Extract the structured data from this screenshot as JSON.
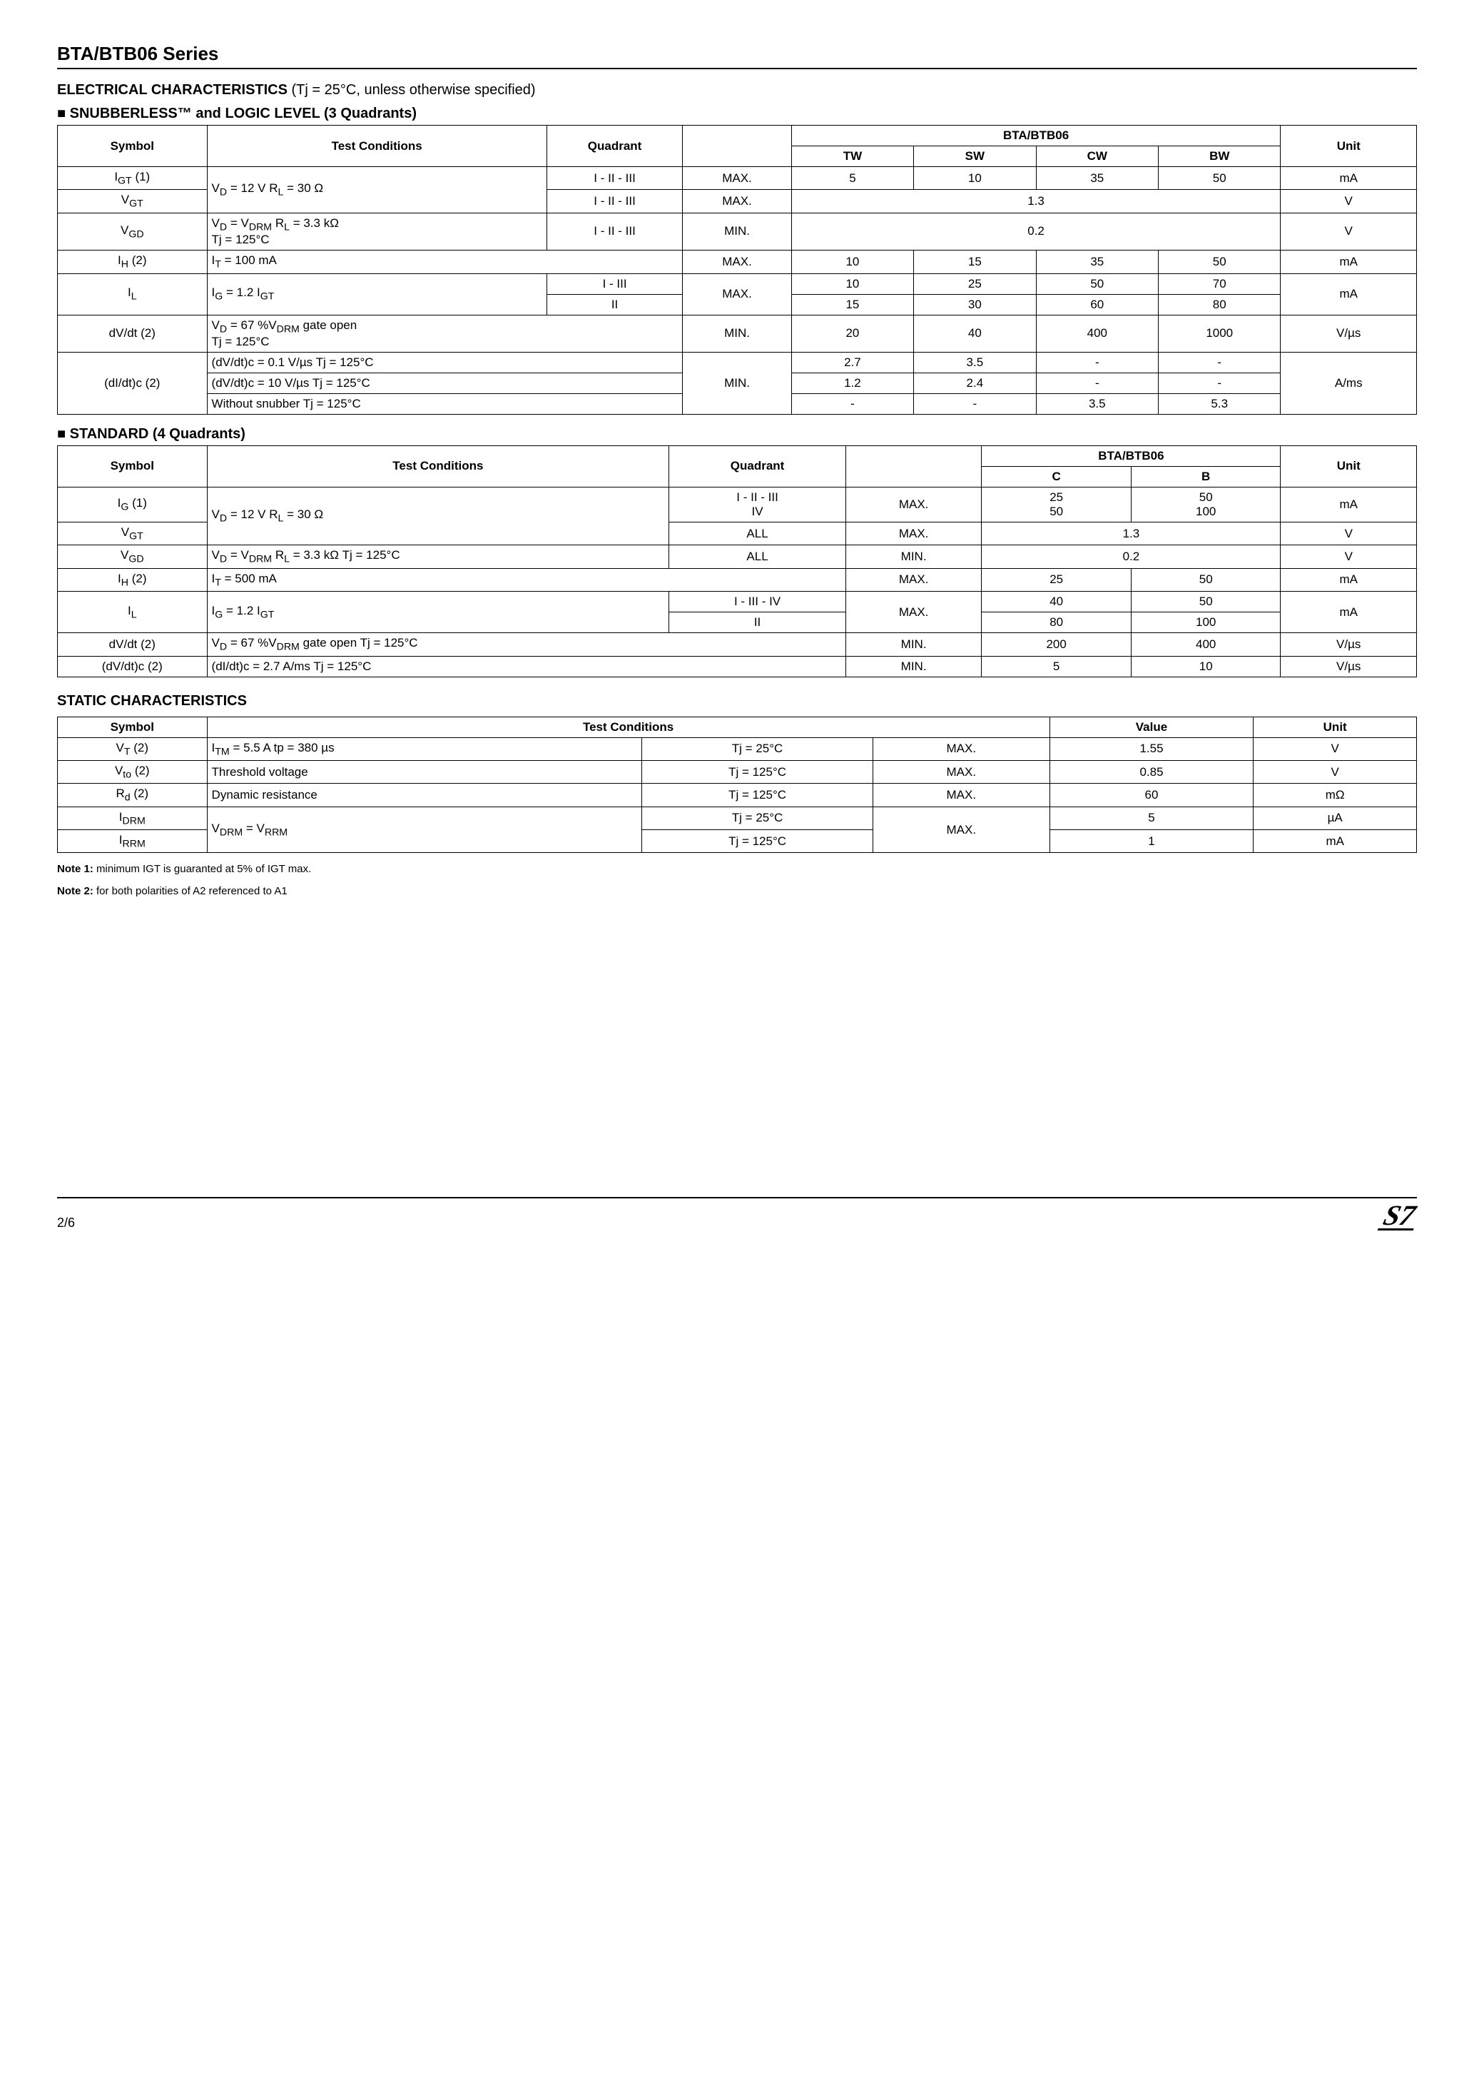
{
  "series_title": "BTA/BTB06 Series",
  "electrical_heading_bold": "ELECTRICAL CHARACTERISTICS",
  "electrical_heading_rest": " (Tj = 25°C, unless otherwise specified)",
  "sub1": "SNUBBERLESS™ and LOGIC LEVEL (3 Quadrants)",
  "t1": {
    "h_symbol": "Symbol",
    "h_cond": "Test Conditions",
    "h_quad": "Quadrant",
    "h_product": "BTA/BTB06",
    "h_unit": "Unit",
    "h_tw": "TW",
    "h_sw": "SW",
    "h_cw": "CW",
    "h_bw": "BW",
    "r1": {
      "sym": "I<sub>GT</sub> (1)",
      "cond": "V<sub>D</sub> = 12 V      R<sub>L</sub> = 30 Ω",
      "quad": "I - II - III",
      "mm": "MAX.",
      "tw": "5",
      "sw": "10",
      "cw": "35",
      "bw": "50",
      "unit": "mA"
    },
    "r2": {
      "sym": "V<sub>GT</sub>",
      "quad": "I - II - III",
      "mm": "MAX.",
      "span": "1.3",
      "unit": "V"
    },
    "r3": {
      "sym": "V<sub>GD</sub>",
      "cond": "V<sub>D</sub> = V<sub>DRM</sub>   R<sub>L</sub> = 3.3 kΩ<br>Tj = 125°C",
      "quad": "I - II - III",
      "mm": "MIN.",
      "span": "0.2",
      "unit": "V"
    },
    "r4": {
      "sym": "I<sub>H</sub> (2)",
      "cond": "I<sub>T</sub> = 100 mA",
      "mm": "MAX.",
      "tw": "10",
      "sw": "15",
      "cw": "35",
      "bw": "50",
      "unit": "mA"
    },
    "r5a": {
      "sym": "I<sub>L</sub>",
      "cond": "I<sub>G</sub> = 1.2 I<sub>GT</sub>",
      "quad": "I - III",
      "mm": "MAX.",
      "tw": "10",
      "sw": "25",
      "cw": "50",
      "bw": "70",
      "unit": "mA"
    },
    "r5b": {
      "quad": "II",
      "tw": "15",
      "sw": "30",
      "cw": "60",
      "bw": "80"
    },
    "r6": {
      "sym": "dV/dt (2)",
      "cond": "V<sub>D</sub> =  67 %V<sub>DRM</sub>  gate open<br>Tj = 125°C",
      "mm": "MIN.",
      "tw": "20",
      "sw": "40",
      "cw": "400",
      "bw": "1000",
      "unit": "V/µs"
    },
    "r7a": {
      "sym": "(dI/dt)c (2)",
      "cond": "(dV/dt)c = 0.1 V/µs    Tj = 125°C",
      "mm": "MIN.",
      "tw": "2.7",
      "sw": "3.5",
      "cw": "-",
      "bw": "-",
      "unit": "A/ms"
    },
    "r7b": {
      "cond": "(dV/dt)c = 10 V/µs    Tj = 125°C",
      "tw": "1.2",
      "sw": "2.4",
      "cw": "-",
      "bw": "-"
    },
    "r7c": {
      "cond": "Without snubber      Tj = 125°C",
      "tw": "-",
      "sw": "-",
      "cw": "3.5",
      "bw": "5.3"
    }
  },
  "sub2": "STANDARD (4 Quadrants)",
  "t2": {
    "h_symbol": "Symbol",
    "h_cond": "Test Conditions",
    "h_quad": "Quadrant",
    "h_product": "BTA/BTB06",
    "h_unit": "Unit",
    "h_c": "C",
    "h_b": "B",
    "r1": {
      "sym": "I<sub>G</sub> (1)",
      "cond": "V<sub>D</sub> = 12 V      R<sub>L</sub> = 30 Ω",
      "quad": "I - II - III<br>IV",
      "mm": "MAX.",
      "c": "25<br>50",
      "b": "50<br>100",
      "unit": "mA"
    },
    "r2": {
      "sym": "V<sub>GT</sub>",
      "quad": "ALL",
      "mm": "MAX.",
      "span": "1.3",
      "unit": "V"
    },
    "r3": {
      "sym": "V<sub>GD</sub>",
      "cond": "V<sub>D</sub> = V<sub>DRM</sub>   R<sub>L</sub> = 3.3 kΩ   Tj = 125°C",
      "quad": "ALL",
      "mm": "MIN.",
      "span": "0.2",
      "unit": "V"
    },
    "r4": {
      "sym": "I<sub>H</sub> (2)",
      "cond": "I<sub>T</sub> = 500 mA",
      "mm": "MAX.",
      "c": "25",
      "b": "50",
      "unit": "mA"
    },
    "r5a": {
      "sym": "I<sub>L</sub>",
      "cond": "I<sub>G</sub> = 1.2 I<sub>GT</sub>",
      "quad": "I - III - IV",
      "mm": "MAX.",
      "c": "40",
      "b": "50",
      "unit": "mA"
    },
    "r5b": {
      "quad": "II",
      "c": "80",
      "b": "100"
    },
    "r6": {
      "sym": "dV/dt (2)",
      "cond": "V<sub>D</sub> =  67 %V<sub>DRM</sub>  gate open   Tj = 125°C",
      "mm": "MIN.",
      "c": "200",
      "b": "400",
      "unit": "V/µs"
    },
    "r7": {
      "sym": "(dV/dt)c (2)",
      "cond": "(dI/dt)c = 2.7 A/ms                  Tj = 125°C",
      "mm": "MIN.",
      "c": "5",
      "b": "10",
      "unit": "V/µs"
    }
  },
  "static_heading": "STATIC CHARACTERISTICS",
  "t3": {
    "h_symbol": "Symbol",
    "h_cond": "Test Conditions",
    "h_value": "Value",
    "h_unit": "Unit",
    "r1": {
      "sym": "V<sub>T</sub> (2)",
      "cond": "I<sub>TM</sub> = 5.5 A       tp = 380 µs",
      "tj": "Tj = 25°C",
      "mm": "MAX.",
      "v": "1.55",
      "unit": "V"
    },
    "r2": {
      "sym": "V<sub>to</sub> (2)",
      "cond": "Threshold voltage",
      "tj": "Tj = 125°C",
      "mm": "MAX.",
      "v": "0.85",
      "unit": "V"
    },
    "r3": {
      "sym": "R<sub>d</sub> (2)",
      "cond": "Dynamic resistance",
      "tj": "Tj = 125°C",
      "mm": "MAX.",
      "v": "60",
      "unit": "mΩ"
    },
    "r4": {
      "sym": "I<sub>DRM</sub>",
      "cond": "V<sub>DRM</sub> = V<sub>RRM</sub>",
      "tj": "Tj = 25°C",
      "mm": "MAX.",
      "v": "5",
      "unit": "µA"
    },
    "r5": {
      "sym": "I<sub>RRM</sub>",
      "tj": "Tj = 125°C",
      "v": "1",
      "unit": "mA"
    }
  },
  "note1_label": "Note 1:",
  "note1": " minimum IGT is guaranted at 5% of IGT max.",
  "note2_label": "Note 2:",
  "note2": " for both polarities of A2 referenced to A1",
  "page": "2/6",
  "logo": "S7"
}
